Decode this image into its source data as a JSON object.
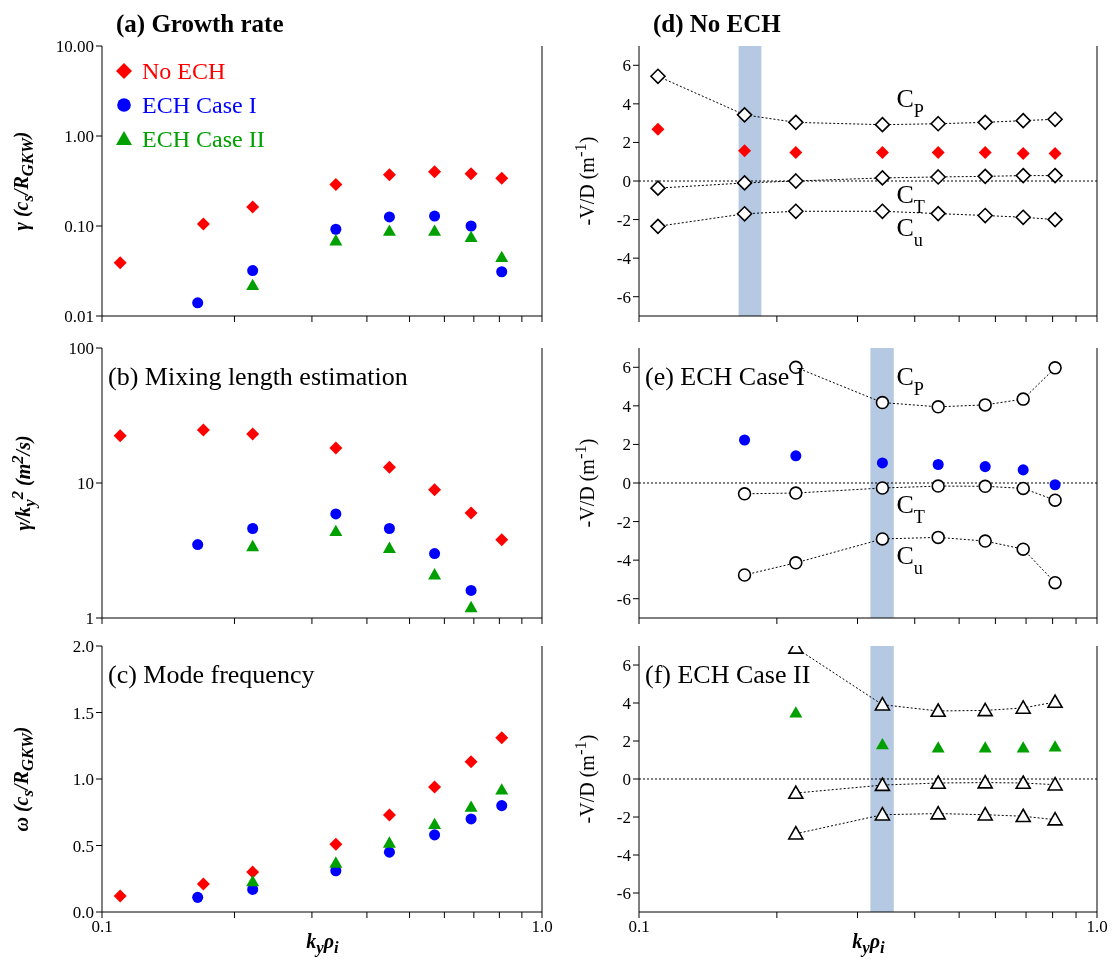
{
  "chart_data": [
    {
      "type": "scatter",
      "title": "(a) Growth rate",
      "ylabel": "γ (c$_{s}$/R$_{GKW}$)",
      "log": "xy",
      "tick_labels": "y",
      "legend": "top left",
      "xlim": [
        0.1,
        1
      ],
      "xticks": [
        {
          "value": 0.1,
          "label": null
        },
        {
          "value": 0.2,
          "label": null
        },
        {
          "value": 0.3,
          "label": null
        },
        {
          "value": 0.4,
          "label": null
        },
        {
          "value": 0.5,
          "label": null
        },
        {
          "value": 0.6,
          "label": null
        },
        {
          "value": 0.7,
          "label": null
        },
        {
          "value": 0.8,
          "label": null
        },
        {
          "value": 0.9,
          "label": null
        },
        {
          "value": 1,
          "label": null
        }
      ],
      "ylim": [
        0.01,
        10
      ],
      "yticks": [
        0.01,
        {
          "value": 0.1,
          "label": "0.10"
        },
        {
          "value": 1,
          "label": "1.00"
        },
        {
          "value": 10,
          "label": "10.00"
        }
      ],
      "series": [
        {
          "name": "No ECH",
          "color": "#ff0000",
          "marker": "diamond",
          "x": [
            0.11,
            0.17,
            0.22,
            0.34,
            0.45,
            0.57,
            0.69,
            0.81
          ],
          "values": [
            0.039,
            0.105,
            0.163,
            0.29,
            0.37,
            0.4,
            0.38,
            0.34
          ]
        },
        {
          "name": "ECH Case I",
          "color": "#0000ff",
          "marker": "circle",
          "x": [
            0.165,
            0.22,
            0.34,
            0.45,
            0.57,
            0.69,
            0.81
          ],
          "values": [
            0.014,
            0.032,
            0.092,
            0.126,
            0.129,
            0.1,
            0.031
          ]
        },
        {
          "name": "ECH Case II",
          "color": "#00a000",
          "marker": "triangle",
          "x": [
            0.22,
            0.34,
            0.45,
            0.57,
            0.69,
            0.81
          ],
          "values": [
            0.022,
            0.069,
            0.088,
            0.088,
            0.075,
            0.045
          ]
        }
      ]
    },
    {
      "type": "scatter",
      "title": "(b) Mixing length estimation",
      "ylabel": "γ/k$_{y}$$^{2}$ (m$^{2}$/s)",
      "log": "xy",
      "tick_labels": "y",
      "xlim": [
        0.1,
        1
      ],
      "xticks": [
        {
          "value": 0.1,
          "label": null
        },
        {
          "value": 0.2,
          "label": null
        },
        {
          "value": 0.3,
          "label": null
        },
        {
          "value": 0.4,
          "label": null
        },
        {
          "value": 0.5,
          "label": null
        },
        {
          "value": 0.6,
          "label": null
        },
        {
          "value": 0.7,
          "label": null
        },
        {
          "value": 0.8,
          "label": null
        },
        {
          "value": 0.9,
          "label": null
        },
        {
          "value": 1,
          "label": null
        }
      ],
      "ylim": [
        1,
        100
      ],
      "yticks": [
        1,
        10,
        100
      ],
      "series": [
        {
          "color": "#ff0000",
          "marker": "diamond",
          "x": [
            0.11,
            0.17,
            0.22,
            0.34,
            0.45,
            0.57,
            0.69,
            0.81
          ],
          "values": [
            22.4,
            24.7,
            23.1,
            18.2,
            13.1,
            8.9,
            6.0,
            3.8
          ]
        },
        {
          "color": "#0000ff",
          "marker": "circle",
          "x": [
            0.165,
            0.22,
            0.34,
            0.45,
            0.57,
            0.69
          ],
          "values": [
            3.5,
            4.6,
            5.9,
            4.6,
            3.0,
            1.6
          ]
        },
        {
          "color": "#00a000",
          "marker": "triangle",
          "x": [
            0.22,
            0.34,
            0.45,
            0.57,
            0.69
          ],
          "values": [
            3.4,
            4.4,
            3.3,
            2.1,
            1.2
          ]
        }
      ]
    },
    {
      "type": "scatter",
      "title": "(c) Mode frequency",
      "ylabel": "ω (c$_{s}$/R$_{GKW}$)",
      "xlabel": "k$_{y}$ρ$_{i}$",
      "log": "x",
      "xlim": [
        0.1,
        1
      ],
      "xticks": [
        0.1,
        {
          "value": 0.2,
          "label": null
        },
        {
          "value": 0.3,
          "label": null
        },
        {
          "value": 0.4,
          "label": null
        },
        {
          "value": 0.5,
          "label": null
        },
        {
          "value": 0.6,
          "label": null
        },
        {
          "value": 0.7,
          "label": null
        },
        {
          "value": 0.8,
          "label": null
        },
        {
          "value": 0.9,
          "label": null
        },
        {
          "value": 1,
          "label": "1.0"
        }
      ],
      "ylim": [
        0,
        2
      ],
      "yticks": [
        {
          "value": 0,
          "label": "0.0"
        },
        0.5,
        {
          "value": 1,
          "label": "1.0"
        },
        1.5,
        {
          "value": 2,
          "label": "2.0"
        }
      ],
      "series": [
        {
          "color": "#ff0000",
          "marker": "diamond",
          "x": [
            0.11,
            0.17,
            0.22,
            0.34,
            0.45,
            0.57,
            0.69,
            0.81
          ],
          "values": [
            0.12,
            0.21,
            0.3,
            0.51,
            0.73,
            0.94,
            1.13,
            1.31
          ]
        },
        {
          "color": "#0000ff",
          "marker": "circle",
          "x": [
            0.165,
            0.22,
            0.34,
            0.45,
            0.57,
            0.69,
            0.81
          ],
          "values": [
            0.11,
            0.17,
            0.31,
            0.45,
            0.58,
            0.7,
            0.8
          ]
        },
        {
          "color": "#00a000",
          "marker": "triangle",
          "x": [
            0.22,
            0.34,
            0.45,
            0.57,
            0.69,
            0.81
          ],
          "values": [
            0.23,
            0.37,
            0.52,
            0.66,
            0.79,
            0.92
          ]
        }
      ]
    },
    {
      "type": "scatter",
      "title": "(d) No ECH",
      "ylabel": "-V/D (m$^{-1}$)",
      "log": "x",
      "tick_labels": "y",
      "xlim": [
        0.1,
        1
      ],
      "xticks": [
        {
          "value": 0.1,
          "label": null
        },
        {
          "value": 0.2,
          "label": null
        },
        {
          "value": 0.3,
          "label": null
        },
        {
          "value": 0.4,
          "label": null
        },
        {
          "value": 0.5,
          "label": null
        },
        {
          "value": 0.6,
          "label": null
        },
        {
          "value": 0.7,
          "label": null
        },
        {
          "value": 0.8,
          "label": null
        },
        {
          "value": 0.9,
          "label": null
        },
        {
          "value": 1,
          "label": null
        }
      ],
      "ylim": [
        -7,
        7
      ],
      "yticks": [
        -6,
        -4,
        -2,
        0,
        2,
        4,
        6
      ],
      "ref_lines": [
        {
          "axis": "y",
          "value": 0,
          "color": "#000000",
          "line_style": "dotted"
        }
      ],
      "bands": [
        {
          "axis": "x",
          "from": 0.165,
          "to": 0.185,
          "color": "#a9c0de"
        }
      ],
      "series": [
        {
          "type": "line",
          "name": "C$_{P}$",
          "color": "#000000",
          "marker": "diamond",
          "line_style": "dotted",
          "x": [
            0.11,
            0.17,
            0.22,
            0.34,
            0.45,
            0.57,
            0.69,
            0.81
          ],
          "values": [
            5.43,
            3.43,
            3.04,
            2.92,
            2.97,
            3.04,
            3.13,
            3.2
          ]
        },
        {
          "type": "line",
          "name": "C$_{T}$",
          "color": "#000000",
          "marker": "diamond",
          "line_style": "dotted",
          "x": [
            0.11,
            0.17,
            0.22,
            0.34,
            0.45,
            0.57,
            0.69,
            0.81
          ],
          "values": [
            -0.37,
            -0.1,
            0,
            0.16,
            0.21,
            0.24,
            0.28,
            0.28
          ]
        },
        {
          "type": "line",
          "name": "C$_{u}$",
          "color": "#000000",
          "marker": "diamond",
          "line_style": "dotted",
          "x": [
            0.11,
            0.17,
            0.22,
            0.34,
            0.45,
            0.57,
            0.69,
            0.81
          ],
          "values": [
            -2.35,
            -1.7,
            -1.57,
            -1.57,
            -1.69,
            -1.79,
            -1.88,
            -2.0
          ]
        },
        {
          "color": "#ff0000",
          "marker": "diamond",
          "x": [
            0.11,
            0.17,
            0.22,
            0.34,
            0.45,
            0.57,
            0.69,
            0.81
          ],
          "values": [
            2.68,
            1.57,
            1.48,
            1.48,
            1.48,
            1.48,
            1.43,
            1.43
          ]
        }
      ]
    },
    {
      "type": "scatter",
      "title": "(e) ECH Case I",
      "ylabel": "-V/D (m$^{-1}$)",
      "log": "x",
      "tick_labels": "y",
      "xlim": [
        0.1,
        1
      ],
      "xticks": [
        {
          "value": 0.1,
          "label": null
        },
        {
          "value": 0.2,
          "label": null
        },
        {
          "value": 0.3,
          "label": null
        },
        {
          "value": 0.4,
          "label": null
        },
        {
          "value": 0.5,
          "label": null
        },
        {
          "value": 0.6,
          "label": null
        },
        {
          "value": 0.7,
          "label": null
        },
        {
          "value": 0.8,
          "label": null
        },
        {
          "value": 0.9,
          "label": null
        },
        {
          "value": 1,
          "label": null
        }
      ],
      "ylim": [
        -7,
        7
      ],
      "yticks": [
        -6,
        -4,
        -2,
        0,
        2,
        4,
        6
      ],
      "ref_lines": [
        {
          "axis": "y",
          "value": 0,
          "color": "#000000",
          "line_style": "dotted"
        }
      ],
      "bands": [
        {
          "axis": "x",
          "from": 0.32,
          "to": 0.36,
          "color": "#a9c0de"
        }
      ],
      "series": [
        {
          "type": "line",
          "name": "C$_{P}$",
          "color": "#000000",
          "marker": "circle",
          "line_style": "dotted",
          "x": [
            0.22,
            0.34,
            0.45,
            0.57,
            0.69,
            0.81
          ],
          "values": [
            6.0,
            4.17,
            3.95,
            4.05,
            4.35,
            5.97
          ]
        },
        {
          "type": "line",
          "name": "C$_{T}$",
          "color": "#000000",
          "marker": "circle",
          "line_style": "dotted",
          "x": [
            0.17,
            0.22,
            0.34,
            0.45,
            0.57,
            0.69,
            0.81
          ],
          "values": [
            -0.56,
            -0.52,
            -0.26,
            -0.16,
            -0.17,
            -0.28,
            -0.89
          ]
        },
        {
          "type": "line",
          "name": "C$_{u}$",
          "color": "#000000",
          "marker": "circle",
          "line_style": "dotted",
          "x": [
            0.17,
            0.22,
            0.34,
            0.45,
            0.57,
            0.69,
            0.81
          ],
          "values": [
            -4.77,
            -4.14,
            -2.9,
            -2.82,
            -3.01,
            -3.43,
            -5.17
          ]
        },
        {
          "color": "#0000ff",
          "marker": "circle",
          "x": [
            0.17,
            0.22,
            0.34,
            0.45,
            0.57,
            0.69,
            0.81
          ],
          "values": [
            2.23,
            1.41,
            1.04,
            0.96,
            0.85,
            0.68,
            -0.09
          ]
        }
      ]
    },
    {
      "type": "scatter",
      "title": "(f) ECH Case II",
      "ylabel": "-V/D (m$^{-1}$)",
      "xlabel": "k$_{y}$ρ$_{i}$",
      "log": "x",
      "xlim": [
        0.1,
        1
      ],
      "xticks": [
        0.1,
        {
          "value": 0.2,
          "label": null
        },
        {
          "value": 0.3,
          "label": null
        },
        {
          "value": 0.4,
          "label": null
        },
        {
          "value": 0.5,
          "label": null
        },
        {
          "value": 0.6,
          "label": null
        },
        {
          "value": 0.7,
          "label": null
        },
        {
          "value": 0.8,
          "label": null
        },
        {
          "value": 0.9,
          "label": null
        },
        {
          "value": 1,
          "label": "1.0"
        }
      ],
      "ylim": [
        -7,
        7
      ],
      "yticks": [
        -6,
        -4,
        -2,
        0,
        2,
        4,
        6
      ],
      "ref_lines": [
        {
          "axis": "y",
          "value": 0,
          "color": "#000000",
          "line_style": "dotted"
        }
      ],
      "bands": [
        {
          "axis": "x",
          "from": 0.32,
          "to": 0.36,
          "color": "#a9c0de"
        }
      ],
      "series": [
        {
          "type": "line",
          "color": "#000000",
          "marker": "triangle",
          "line_style": "dotted",
          "x": [
            0.22,
            0.34,
            0.45,
            0.57,
            0.69,
            0.81
          ],
          "values": [
            6.9,
            3.91,
            3.58,
            3.61,
            3.74,
            4.05
          ]
        },
        {
          "type": "line",
          "color": "#000000",
          "marker": "triangle",
          "line_style": "dotted",
          "x": [
            0.22,
            0.34,
            0.45,
            0.57,
            0.69,
            0.81
          ],
          "values": [
            -0.74,
            -0.32,
            -0.21,
            -0.19,
            -0.21,
            -0.3
          ]
        },
        {
          "type": "line",
          "color": "#000000",
          "marker": "triangle",
          "line_style": "dotted",
          "x": [
            0.22,
            0.34,
            0.45,
            0.57,
            0.69,
            0.81
          ],
          "values": [
            -2.88,
            -1.88,
            -1.82,
            -1.88,
            -1.96,
            -2.14
          ]
        },
        {
          "color": "#00a000",
          "marker": "triangle",
          "x": [
            0.22,
            0.34,
            0.45,
            0.57,
            0.69,
            0.81
          ],
          "values": [
            3.49,
            1.82,
            1.65,
            1.65,
            1.65,
            1.7
          ]
        }
      ]
    }
  ]
}
